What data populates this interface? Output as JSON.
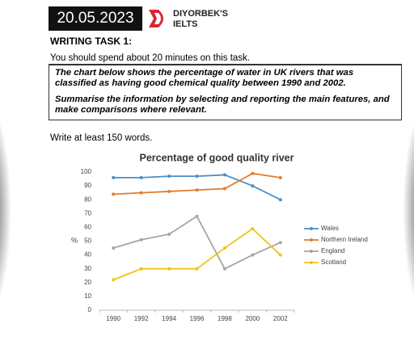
{
  "header": {
    "date": "20.05.2023",
    "brand": [
      "DIYORBEK'S",
      "IELTS"
    ]
  },
  "task": {
    "heading": "WRITING TASK 1:",
    "time_note": "You should spend about 20 minutes on this task.",
    "prompt": [
      "The chart below shows the percentage of water in UK rivers that was classified as having good chemical quality between 1990 and 2002.",
      "Summarise the information by selecting and reporting the main features, and make comparisons where relevant."
    ],
    "word_limit": "Write at least 150 words."
  },
  "chart_data": {
    "type": "line",
    "title": "Percentage of good quality river",
    "y_label": "%",
    "categories": [
      "1990",
      "1992",
      "1994",
      "1996",
      "1998",
      "2000",
      "2002"
    ],
    "series": [
      {
        "name": "Wales",
        "color": "#4a8fc9",
        "values": [
          96,
          96,
          97,
          97,
          98,
          90,
          80
        ]
      },
      {
        "name": "Northern Ireland",
        "color": "#e57c2c",
        "values": [
          84,
          85,
          86,
          87,
          88,
          99,
          96
        ]
      },
      {
        "name": "England",
        "color": "#a5a5a5",
        "values": [
          45,
          51,
          55,
          68,
          30,
          40,
          49
        ]
      },
      {
        "name": "Scotland",
        "color": "#f3c30f",
        "values": [
          22,
          30,
          30,
          30,
          45,
          59,
          40
        ]
      }
    ],
    "ylim": [
      0,
      100
    ],
    "yticks": [
      0,
      10,
      20,
      30,
      40,
      50,
      60,
      70,
      80,
      90,
      100
    ],
    "grid": false,
    "legend": "right"
  }
}
